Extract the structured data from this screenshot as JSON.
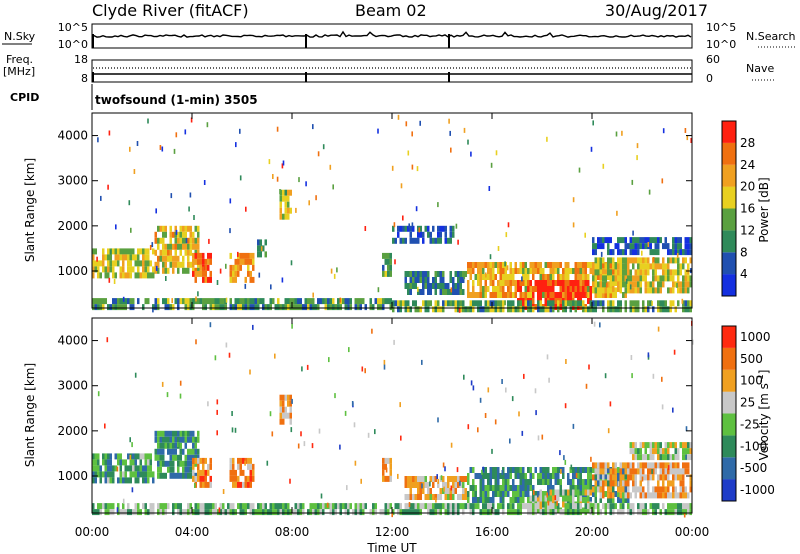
{
  "header": {
    "station": "Clyde River (fitACF)",
    "beam": "Beam 02",
    "date": "30/Aug/2017"
  },
  "top_panels": {
    "nsky_label": "N.Sky",
    "nsky_ticks": [
      "10^5",
      "10^0"
    ],
    "nsearch_label": "N.Search",
    "nsearch_ticks": [
      "10^5",
      "10^0"
    ],
    "freq_label": "Freq.",
    "freq_unit": "[MHz]",
    "freq_ticks": [
      "18",
      "8"
    ],
    "nave_label": "Nave",
    "nave_ticks": [
      "60",
      "0"
    ],
    "cpid_label": "CPID",
    "cpid_text": "twofsound (1-min) 3505"
  },
  "chart_data": [
    {
      "type": "heatmap",
      "name": "power",
      "ylabel": "Slant Range [km]",
      "xlabel": "Time UT",
      "x_ticks": [
        "00:00",
        "04:00",
        "08:00",
        "12:00",
        "16:00",
        "20:00",
        "00:00"
      ],
      "x_range_hours": [
        0,
        24
      ],
      "y_ticks": [
        1000,
        2000,
        3000,
        4000
      ],
      "y_range_km": [
        180,
        4500
      ],
      "colorbar": {
        "label": "Power [dB]",
        "ticks": [
          "4",
          "8",
          "12",
          "16",
          "20",
          "24",
          "28"
        ],
        "range": [
          0,
          30
        ],
        "colors": [
          "#1430e0",
          "#2050b0",
          "#2f8a5a",
          "#5aa040",
          "#e8d020",
          "#f0a020",
          "#f07010",
          "#ff2010"
        ]
      },
      "regions": [
        {
          "t0": 0.0,
          "t1": 2.5,
          "r0": 900,
          "r1": 1500,
          "level": 0.55
        },
        {
          "t0": 2.5,
          "t1": 4.3,
          "r0": 1000,
          "r1": 2000,
          "level": 0.6
        },
        {
          "t0": 4.0,
          "t1": 4.8,
          "r0": 800,
          "r1": 1400,
          "level": 0.8
        },
        {
          "t0": 5.5,
          "t1": 6.5,
          "r0": 800,
          "r1": 1400,
          "level": 0.7
        },
        {
          "t0": 6.6,
          "t1": 7.0,
          "r0": 1400,
          "r1": 1700,
          "level": 0.3
        },
        {
          "t0": 7.5,
          "t1": 8.0,
          "r0": 2200,
          "r1": 2800,
          "level": 0.5
        },
        {
          "t0": 11.6,
          "t1": 12.0,
          "r0": 900,
          "r1": 1400,
          "level": 0.4
        },
        {
          "t0": 12.5,
          "t1": 15.0,
          "r0": 500,
          "r1": 1000,
          "level": 0.3
        },
        {
          "t0": 15.0,
          "t1": 21.5,
          "r0": 500,
          "r1": 1200,
          "level": 0.65
        },
        {
          "t0": 17.0,
          "t1": 20.0,
          "r0": 200,
          "r1": 800,
          "level": 0.95
        },
        {
          "t0": 20.0,
          "t1": 24.0,
          "r0": 600,
          "r1": 1300,
          "level": 0.55
        },
        {
          "t0": 20.0,
          "t1": 24.0,
          "r0": 1450,
          "r1": 1750,
          "level": 0.15
        },
        {
          "t0": 12.0,
          "t1": 14.5,
          "r0": 1700,
          "r1": 2000,
          "level": 0.2
        },
        {
          "t0": 0.0,
          "t1": 12.0,
          "r0": 180,
          "r1": 400,
          "level": 0.35
        },
        {
          "t0": 12.0,
          "t1": 24.0,
          "r0": 180,
          "r1": 350,
          "level": 0.4
        }
      ]
    },
    {
      "type": "heatmap",
      "name": "velocity",
      "ylabel": "Slant Range [km]",
      "xlabel": "Time UT",
      "x_ticks": [
        "00:00",
        "04:00",
        "08:00",
        "12:00",
        "16:00",
        "20:00",
        "00:00"
      ],
      "x_range_hours": [
        0,
        24
      ],
      "y_ticks": [
        1000,
        2000,
        3000,
        4000
      ],
      "y_range_km": [
        180,
        4500
      ],
      "colorbar": {
        "label": "Velocity [m s^-1]",
        "ticks": [
          "1000",
          "500",
          "100",
          "25",
          "-25",
          "-100",
          "-500",
          "-1000"
        ],
        "colors": [
          "#1e3cc8",
          "#2f6aa8",
          "#2e8a5a",
          "#5ec040",
          "#c8c8c8",
          "#f0a020",
          "#f07010",
          "#ff2a10"
        ]
      },
      "regions": [
        {
          "t0": 0.0,
          "t1": 2.5,
          "r0": 900,
          "r1": 1500,
          "level": 0.35
        },
        {
          "t0": 2.5,
          "t1": 4.3,
          "r0": 1000,
          "r1": 2000,
          "level": 0.3
        },
        {
          "t0": 4.0,
          "t1": 4.8,
          "r0": 800,
          "r1": 1400,
          "level": 0.75
        },
        {
          "t0": 5.5,
          "t1": 6.5,
          "r0": 800,
          "r1": 1400,
          "level": 0.75
        },
        {
          "t0": 7.5,
          "t1": 8.0,
          "r0": 2200,
          "r1": 2800,
          "level": 0.7
        },
        {
          "t0": 11.6,
          "t1": 12.0,
          "r0": 900,
          "r1": 1400,
          "level": 0.7
        },
        {
          "t0": 12.5,
          "t1": 15.0,
          "r0": 500,
          "r1": 1000,
          "level": 0.65
        },
        {
          "t0": 15.0,
          "t1": 21.5,
          "r0": 500,
          "r1": 1200,
          "level": 0.3
        },
        {
          "t0": 17.5,
          "t1": 20.0,
          "r0": 250,
          "r1": 700,
          "level": 0.5
        },
        {
          "t0": 20.0,
          "t1": 24.0,
          "r0": 600,
          "r1": 1300,
          "level": 0.7
        },
        {
          "t0": 21.5,
          "t1": 24.0,
          "r0": 1450,
          "r1": 1750,
          "level": 0.5
        },
        {
          "t0": 0.0,
          "t1": 24.0,
          "r0": 180,
          "r1": 400,
          "level": 0.45
        }
      ]
    }
  ]
}
